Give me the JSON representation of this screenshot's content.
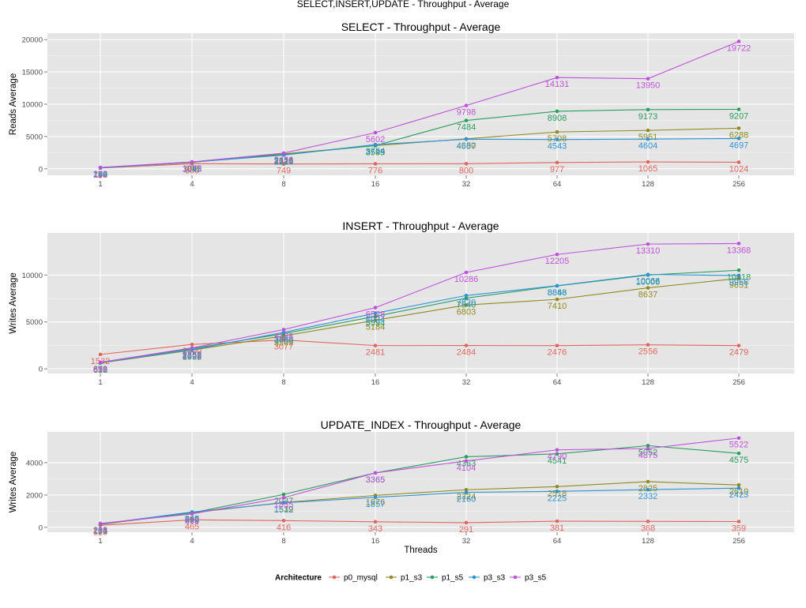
{
  "figure_title": "SELECT,INSERT,UPDATE - Throughput - Average",
  "colors": {
    "p0_mysql": "#e0675f",
    "p1_s3": "#8f8a1e",
    "p1_s5": "#2a9d60",
    "p3_s3": "#2f93d6",
    "p3_s5": "#c051dc"
  },
  "legend": {
    "title": "Architecture",
    "placement": "bottom",
    "items": [
      "p0_mysql",
      "p1_s3",
      "p1_s5",
      "p3_s3",
      "p3_s5"
    ]
  },
  "chart_data": [
    {
      "type": "line",
      "title": "SELECT  - Throughput - Average",
      "xlabel": "",
      "ylabel": "Reads  Average",
      "categories": [
        "1",
        "4",
        "8",
        "16",
        "32",
        "64",
        "128",
        "256"
      ],
      "ylim": [
        -1000,
        21000
      ],
      "yticks": [
        0,
        5000,
        10000,
        15000,
        20000
      ],
      "grid": true,
      "series": [
        {
          "name": "p0_mysql",
          "values": [
            116,
            800,
            749,
            776,
            800,
            977,
            1065,
            1024
          ]
        },
        {
          "name": "p1_s3",
          "values": [
            172,
            998,
            2326,
            3585,
            4650,
            5708,
            5951,
            6288
          ]
        },
        {
          "name": "p1_s5",
          "values": [
            190,
            1062,
            2216,
            3599,
            7484,
            8908,
            9173,
            9207
          ]
        },
        {
          "name": "p3_s3",
          "values": [
            144,
            1045,
            2126,
            3754,
            4587,
            4543,
            4604,
            4697
          ]
        },
        {
          "name": "p3_s5",
          "values": [
            222,
            1075,
            2436,
            5602,
            9798,
            14131,
            13950,
            19722
          ]
        }
      ]
    },
    {
      "type": "line",
      "title": "INSERT  - Throughput - Average",
      "xlabel": "",
      "ylabel": "Writes  Average",
      "categories": [
        "1",
        "4",
        "8",
        "16",
        "32",
        "64",
        "128",
        "256"
      ],
      "ylim": [
        -500,
        14500
      ],
      "yticks": [
        0,
        5000,
        10000
      ],
      "grid": true,
      "series": [
        {
          "name": "p0_mysql",
          "values": [
            1532,
            2600,
            3077,
            2481,
            2484,
            2476,
            2556,
            2479
          ]
        },
        {
          "name": "p1_s3",
          "values": [
            616,
            1992,
            3509,
            5184,
            6803,
            7410,
            8637,
            9651
          ]
        },
        {
          "name": "p1_s5",
          "values": [
            652,
            2152,
            3750,
            5594,
            7540,
            8843,
            10006,
            10518
          ]
        },
        {
          "name": "p3_s3",
          "values": [
            673,
            2029,
            3888,
            5934,
            7820,
            8866,
            10066,
            9956
          ]
        },
        {
          "name": "p3_s5",
          "values": [
            699,
            2232,
            4188,
            6528,
            10286,
            12205,
            13310,
            13368
          ]
        }
      ]
    },
    {
      "type": "line",
      "title": "UPDATE_INDEX  - Throughput - Average",
      "xlabel": "Threads",
      "ylabel": "Writes  Average",
      "categories": [
        "1",
        "4",
        "8",
        "16",
        "32",
        "64",
        "128",
        "256"
      ],
      "ylim": [
        -300,
        5900
      ],
      "yticks": [
        0,
        2000,
        4000
      ],
      "grid": true,
      "series": [
        {
          "name": "p0_mysql",
          "values": [
            125,
            465,
            416,
            343,
            291,
            381,
            368,
            359
          ]
        },
        {
          "name": "p1_s3",
          "values": [
            181,
            899,
            1539,
            1976,
            2324,
            2518,
            2825,
            2619
          ]
        },
        {
          "name": "p1_s5",
          "values": [
            214,
            892,
            2037,
            3365,
            4363,
            4541,
            5052,
            4575
          ]
        },
        {
          "name": "p3_s3",
          "values": [
            203,
            948,
            1512,
            1857,
            2160,
            2225,
            2332,
            2423
          ]
        },
        {
          "name": "p3_s5",
          "values": [
            238,
            833,
            1835,
            3365,
            4104,
            4790,
            4875,
            5522
          ]
        }
      ]
    }
  ]
}
